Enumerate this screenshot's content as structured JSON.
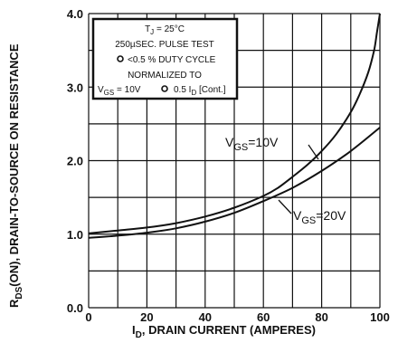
{
  "chart_data": {
    "type": "line",
    "xlabel_main": ", DRAIN CURRENT (AMPERES)",
    "xlabel_sym": "I",
    "xlabel_sub": "D",
    "ylabel_sym": "R",
    "ylabel_sub": "DS",
    "ylabel_main": "(ON), DRAIN-TO-SOURCE ON RESISTANCE",
    "xlim": [
      0,
      100
    ],
    "ylim": [
      0.0,
      4.0
    ],
    "x_ticks": [
      "0",
      "20",
      "40",
      "60",
      "80",
      "100"
    ],
    "y_ticks": [
      "0.0",
      "1.0",
      "2.0",
      "3.0",
      "4.0"
    ],
    "grid": true,
    "series": [
      {
        "name": "VGS=10V",
        "label_pre": "V",
        "label_sub": "GS",
        "label_post": "=10V",
        "x": [
          0,
          10,
          20,
          30,
          40,
          50,
          60,
          65,
          70,
          75,
          80,
          85,
          90,
          93,
          96,
          98,
          99,
          100
        ],
        "y": [
          1.01,
          1.05,
          1.09,
          1.15,
          1.24,
          1.36,
          1.52,
          1.63,
          1.78,
          1.94,
          2.13,
          2.36,
          2.66,
          2.9,
          3.2,
          3.5,
          3.75,
          4.0
        ]
      },
      {
        "name": "VGS=20V",
        "label_pre": "V",
        "label_sub": "GS",
        "label_post": "=20V",
        "x": [
          0,
          10,
          20,
          30,
          40,
          50,
          60,
          70,
          80,
          90,
          100
        ],
        "y": [
          0.95,
          0.98,
          1.02,
          1.08,
          1.17,
          1.29,
          1.45,
          1.63,
          1.86,
          2.13,
          2.45
        ]
      }
    ],
    "notes": {
      "line1_pre": "T",
      "line1_sub": "J",
      "line1_post": " = 25°C",
      "line2": "250µSEC. PULSE TEST",
      "line3": "<0.5 % DUTY CYCLE",
      "line4": "NORMALIZED TO",
      "line5_a": "V",
      "line5_a_sub": "GS",
      "line5_b": " = 10V",
      "line5_c": "0.5  I",
      "line5_c_sub": "D",
      "line5_d": " [Cont.]"
    }
  }
}
